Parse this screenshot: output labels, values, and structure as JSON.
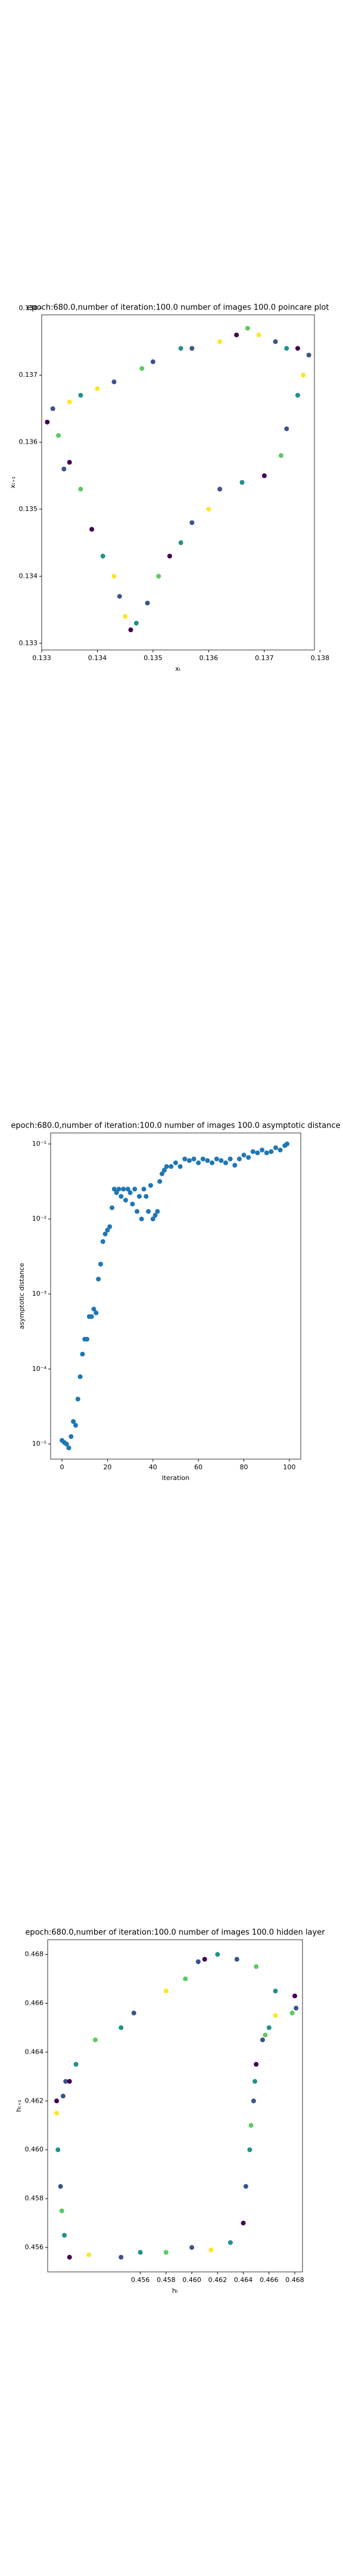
{
  "chart_data": [
    {
      "type": "scatter",
      "title": "epoch:680.0,number of iteration:100.0 number of images 100.0 poincare plot",
      "xlabel": "xₜ",
      "ylabel": "xₜ₊₁",
      "xlim": [
        0.133,
        0.1379
      ],
      "ylim": [
        0.1329,
        0.1379
      ],
      "xticks": [
        0.133,
        0.134,
        0.135,
        0.136,
        0.137,
        0.138
      ],
      "yticks": [
        0.133,
        0.134,
        0.135,
        0.136,
        0.137,
        0.138
      ],
      "x": [
        0.1331,
        0.1332,
        0.1333,
        0.1335,
        0.1337,
        0.134,
        0.1343,
        0.1348,
        0.135,
        0.1355,
        0.1357,
        0.1362,
        0.1365,
        0.1367,
        0.1369,
        0.1372,
        0.1374,
        0.1376,
        0.1378,
        0.1377,
        0.1376,
        0.1374,
        0.1373,
        0.137,
        0.1366,
        0.1362,
        0.136,
        0.1357,
        0.1355,
        0.1353,
        0.1351,
        0.1349,
        0.1347,
        0.1346,
        0.1345,
        0.1344,
        0.1343,
        0.1341,
        0.1339,
        0.1337,
        0.1335,
        0.1334
      ],
      "values": [
        0.1363,
        0.1365,
        0.1361,
        0.1366,
        0.1367,
        0.1368,
        0.1369,
        0.1371,
        0.1372,
        0.1374,
        0.1374,
        0.1375,
        0.1376,
        0.1377,
        0.1376,
        0.1375,
        0.1374,
        0.1374,
        0.1373,
        0.137,
        0.1367,
        0.1362,
        0.1358,
        0.1355,
        0.1354,
        0.1353,
        0.135,
        0.1348,
        0.1345,
        0.1343,
        0.134,
        0.1336,
        0.1333,
        0.1332,
        0.1334,
        0.1337,
        0.134,
        0.1343,
        0.1347,
        0.1353,
        0.1357,
        0.1356
      ],
      "colors": [
        "#440154",
        "#3b528b",
        "#5ec962",
        "#fde725",
        "#21918c",
        "#fde725",
        "#3b528b",
        "#5ec962",
        "#3b528b",
        "#21918c",
        "#3b528b",
        "#fde725",
        "#440154",
        "#5ec962",
        "#fde725",
        "#3b528b",
        "#21918c",
        "#440154",
        "#3b528b",
        "#fde725",
        "#21918c",
        "#3b528b",
        "#5ec962",
        "#440154",
        "#21918c",
        "#3b528b",
        "#fde725",
        "#3b528b",
        "#21918c",
        "#440154",
        "#5ec962",
        "#3b528b",
        "#21918c",
        "#440154",
        "#fde725",
        "#3b528b",
        "#fde725",
        "#21918c",
        "#440154",
        "#5ec962",
        "#440154",
        "#3b528b"
      ]
    },
    {
      "type": "scatter",
      "title": "epoch:680.0,number of iteration:100.0  number of images 100.0 asymptotic distance",
      "xlabel": "iteration",
      "ylabel": "asymptotic distance",
      "log_y": true,
      "color": "#1f77b4",
      "xlim": [
        -5,
        105
      ],
      "ylim": [
        6.3e-06,
        0.14
      ],
      "xticks": [
        0,
        20,
        40,
        60,
        80,
        100
      ],
      "yticks": [
        {
          "value": 1e-05,
          "label": "10⁻⁵"
        },
        {
          "value": 0.0001,
          "label": "10⁻⁴"
        },
        {
          "value": 0.001,
          "label": "10⁻³"
        },
        {
          "value": 0.01,
          "label": "10⁻²"
        },
        {
          "value": 0.1,
          "label": "10⁻¹"
        }
      ],
      "x": [
        0,
        1,
        2,
        3,
        4,
        5,
        6,
        7,
        8,
        9,
        10,
        11,
        12,
        13,
        14,
        15,
        16,
        17,
        18,
        19,
        20,
        21,
        22,
        23,
        24,
        25,
        26,
        27,
        28,
        29,
        30,
        31,
        32,
        33,
        34,
        35,
        36,
        37,
        38,
        39,
        40,
        41,
        42,
        43,
        44,
        45,
        46,
        48,
        50,
        52,
        54,
        56,
        58,
        60,
        62,
        64,
        66,
        68,
        70,
        72,
        74,
        76,
        78,
        80,
        82,
        84,
        86,
        88,
        90,
        92,
        94,
        96,
        98,
        99
      ],
      "values": [
        1.12e-05,
        1.05e-05,
        1e-05,
        8.9e-06,
        1.26e-05,
        2e-05,
        1.78e-05,
        3.98e-05,
        7.9e-05,
        0.000158,
        0.00025,
        0.00025,
        0.0005,
        0.0005,
        0.00063,
        0.00056,
        0.00158,
        0.0025,
        0.005,
        0.0063,
        0.0071,
        0.0079,
        0.0141,
        0.025,
        0.0224,
        0.025,
        0.02,
        0.025,
        0.0178,
        0.025,
        0.0224,
        0.0158,
        0.025,
        0.0126,
        0.02,
        0.01,
        0.025,
        0.02,
        0.0126,
        0.028,
        0.01,
        0.0112,
        0.0126,
        0.0316,
        0.04,
        0.0447,
        0.05,
        0.05,
        0.056,
        0.05,
        0.063,
        0.06,
        0.063,
        0.056,
        0.063,
        0.06,
        0.056,
        0.063,
        0.06,
        0.056,
        0.063,
        0.052,
        0.063,
        0.071,
        0.066,
        0.079,
        0.076,
        0.083,
        0.076,
        0.079,
        0.089,
        0.083,
        0.095,
        0.1
      ]
    },
    {
      "type": "scatter",
      "title": "epoch:680.0,number of iteration:100.0  number of images 100.0 hidden layer",
      "xlabel": "hₜ",
      "ylabel": "hₜ₊₁",
      "xlim": [
        0.4488,
        0.4686
      ],
      "ylim": [
        0.455,
        0.4686
      ],
      "xticks": [
        0.456,
        0.458,
        {
          "value": 0.46,
          "label": "0.460"
        },
        0.462,
        0.464,
        0.466,
        0.468
      ],
      "yticks": [
        0.456,
        0.458,
        {
          "value": 0.46,
          "label": "0.460"
        },
        0.462,
        0.464,
        0.466,
        0.468
      ],
      "x": [
        0.4495,
        0.4502,
        0.451,
        0.4525,
        0.4545,
        0.4555,
        0.458,
        0.4595,
        0.4605,
        0.461,
        0.462,
        0.4635,
        0.465,
        0.4665,
        0.468,
        0.4681,
        0.4678,
        0.4665,
        0.466,
        0.4657,
        0.4655,
        0.465,
        0.4649,
        0.4648,
        0.4646,
        0.4645,
        0.4642,
        0.464,
        0.463,
        0.4615,
        0.46,
        0.458,
        0.456,
        0.4545,
        0.452,
        0.4505,
        0.4501,
        0.4499,
        0.4498,
        0.4496,
        0.4495,
        0.45,
        0.4505
      ],
      "values": [
        0.462,
        0.4628,
        0.4635,
        0.4645,
        0.465,
        0.4656,
        0.4665,
        0.467,
        0.4677,
        0.4678,
        0.468,
        0.4678,
        0.4675,
        0.4665,
        0.4663,
        0.4658,
        0.4656,
        0.4655,
        0.465,
        0.4647,
        0.4645,
        0.4635,
        0.4628,
        0.462,
        0.461,
        0.46,
        0.4585,
        0.457,
        0.4562,
        0.4559,
        0.456,
        0.4558,
        0.4558,
        0.4556,
        0.4557,
        0.4556,
        0.4565,
        0.4575,
        0.4585,
        0.46,
        0.4615,
        0.4622,
        0.4628
      ],
      "colors": [
        "#440154",
        "#3b528b",
        "#21918c",
        "#5ec962",
        "#21918c",
        "#3b528b",
        "#fde725",
        "#5ec962",
        "#3b528b",
        "#440154",
        "#21918c",
        "#3b528b",
        "#5ec962",
        "#21918c",
        "#440154",
        "#3b528b",
        "#5ec962",
        "#fde725",
        "#21918c",
        "#5ec962",
        "#3b528b",
        "#440154",
        "#21918c",
        "#3b528b",
        "#5ec962",
        "#21918c",
        "#3b528b",
        "#440154",
        "#21918c",
        "#fde725",
        "#3b528b",
        "#5ec962",
        "#21918c",
        "#3b528b",
        "#fde725",
        "#440154",
        "#21918c",
        "#5ec962",
        "#3b528b",
        "#21918c",
        "#fde725",
        "#3b528b",
        "#440154"
      ]
    }
  ]
}
